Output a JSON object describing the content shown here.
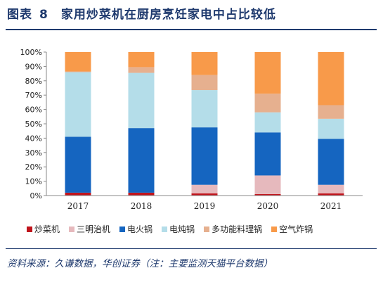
{
  "figure": {
    "label": "图表",
    "number": "8",
    "title": "家用炒菜机在厨房烹饪家电中占比较低",
    "source": "资料来源：久谦数据，华创证券（注：主要监测天猫平台数据）"
  },
  "chart_data": {
    "type": "bar",
    "stacked": true,
    "categories": [
      "2017",
      "2018",
      "2019",
      "2020",
      "2021"
    ],
    "y_ticks": [
      "0%",
      "10%",
      "20%",
      "30%",
      "40%",
      "50%",
      "60%",
      "70%",
      "80%",
      "90%",
      "100%"
    ],
    "ylim": [
      0,
      100
    ],
    "grid": false,
    "legend_position": "bottom",
    "series": [
      {
        "name": "炒菜机",
        "color": "#c0141c",
        "values": [
          2,
          2,
          1.5,
          1,
          1.5
        ]
      },
      {
        "name": "三明治机",
        "color": "#e6b9bd",
        "values": [
          0,
          0,
          6,
          13,
          6
        ]
      },
      {
        "name": "电火锅",
        "color": "#1565c0",
        "values": [
          39,
          45,
          40,
          30,
          32
        ]
      },
      {
        "name": "电炖锅",
        "color": "#b4dde9",
        "values": [
          45,
          38.5,
          26,
          14,
          14
        ]
      },
      {
        "name": "多功能料理锅",
        "color": "#e6b08f",
        "values": [
          0.5,
          4,
          10.5,
          13,
          9.5
        ]
      },
      {
        "name": "空气炸锅",
        "color": "#f89a4a",
        "values": [
          13.5,
          10.5,
          16,
          29,
          37
        ]
      }
    ]
  }
}
